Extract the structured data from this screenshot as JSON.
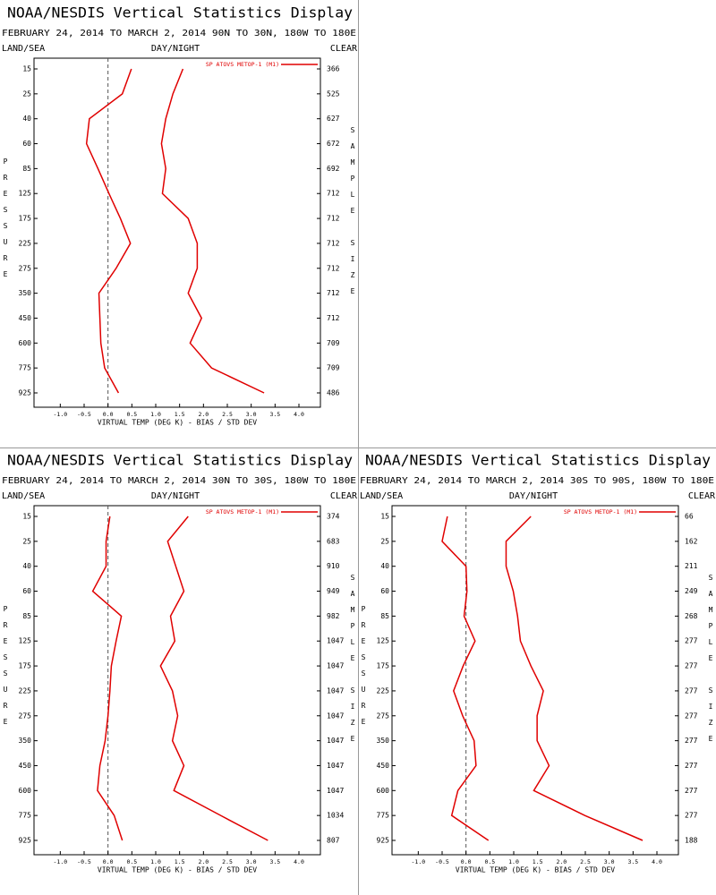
{
  "chart_data": [
    {
      "type": "line",
      "title": "NOAA/NESDIS Vertical Statistics Display",
      "subtitle": "FEBRUARY 24, 2014 TO MARCH 2, 2014 90N TO 30N, 180W TO 180E",
      "label_left": "LAND/SEA",
      "label_center": "DAY/NIGHT",
      "label_right": "CLEAR",
      "ylabel": "PRESSURE",
      "y2label": "SAMPLE SIZE",
      "xlabel": "VIRTUAL TEMP (DEG K) - BIAS / STD DEV",
      "categories": [
        15,
        25,
        40,
        60,
        85,
        125,
        175,
        225,
        275,
        350,
        450,
        600,
        775,
        925
      ],
      "series": [
        {
          "name": "SP ATOVS METOP-1 (M1)",
          "color": "#e00000",
          "bias": [
            0.49,
            0.3,
            -0.39,
            -0.45,
            -0.21,
            0.02,
            0.26,
            0.47,
            0.17,
            -0.19,
            -0.17,
            -0.15,
            -0.07,
            0.22
          ],
          "std_dev": [
            1.57,
            1.36,
            1.21,
            1.12,
            1.21,
            1.14,
            1.68,
            1.87,
            1.87,
            1.68,
            1.96,
            1.72,
            2.17,
            3.27
          ]
        }
      ],
      "sample_size": [
        366,
        525,
        627,
        672,
        692,
        712,
        712,
        712,
        712,
        712,
        712,
        709,
        709,
        486
      ],
      "xlim": [
        -1.55,
        4.45
      ],
      "xticks": [
        {
          "value": -1,
          "label": "-1.0"
        },
        -0.5,
        {
          "value": 0,
          "label": "0.0"
        },
        0.5,
        {
          "value": 1,
          "label": "1.0"
        },
        1.5,
        {
          "value": 2,
          "label": "2.0"
        },
        2.5,
        {
          "value": 3,
          "label": "3.0"
        },
        3.5,
        {
          "value": 4,
          "label": "4.0"
        }
      ]
    },
    {
      "type": "line",
      "title": "NOAA/NESDIS Vertical Statistics Display",
      "subtitle": "FEBRUARY 24, 2014 TO MARCH 2, 2014 30N TO 30S, 180W TO 180E",
      "label_left": "LAND/SEA",
      "label_center": "DAY/NIGHT",
      "label_right": "CLEAR",
      "ylabel": "PRESSURE",
      "y2label": "SAMPLE SIZE",
      "xlabel": "VIRTUAL TEMP (DEG K) - BIAS / STD DEV",
      "categories": [
        15,
        25,
        40,
        60,
        85,
        125,
        175,
        225,
        275,
        350,
        450,
        600,
        775,
        925
      ],
      "series": [
        {
          "name": "SP ATOVS METOP-1 (M1)",
          "color": "#e00000",
          "bias": [
            0.04,
            -0.04,
            -0.04,
            -0.32,
            0.28,
            0.17,
            0.07,
            0.04,
            0,
            -0.06,
            -0.17,
            -0.22,
            0.13,
            0.3
          ],
          "std_dev": [
            1.68,
            1.25,
            1.42,
            1.59,
            1.31,
            1.4,
            1.1,
            1.35,
            1.46,
            1.35,
            1.59,
            1.38,
            2.36,
            3.35
          ]
        }
      ],
      "sample_size": [
        374,
        683,
        910,
        949,
        982,
        1047,
        1047,
        1047,
        1047,
        1047,
        1047,
        1047,
        1034,
        807
      ],
      "xlim": [
        -1.55,
        4.45
      ],
      "xticks": [
        {
          "value": -1,
          "label": "-1.0"
        },
        -0.5,
        {
          "value": 0,
          "label": "0.0"
        },
        0.5,
        {
          "value": 1,
          "label": "1.0"
        },
        1.5,
        {
          "value": 2,
          "label": "2.0"
        },
        2.5,
        {
          "value": 3,
          "label": "3.0"
        },
        3.5,
        {
          "value": 4,
          "label": "4.0"
        }
      ]
    },
    {
      "type": "line",
      "title": "NOAA/NESDIS Vertical Statistics Display",
      "subtitle": "FEBRUARY 24, 2014 TO MARCH 2, 2014 30S TO 90S, 180W TO 180E",
      "label_left": "LAND/SEA",
      "label_center": "DAY/NIGHT",
      "label_right": "CLEAR",
      "ylabel": "PRESSURE",
      "y2label": "SAMPLE SIZE",
      "xlabel": "VIRTUAL TEMP (DEG K) - BIAS / STD DEV",
      "categories": [
        15,
        25,
        40,
        60,
        85,
        125,
        175,
        225,
        275,
        350,
        450,
        600,
        775,
        925
      ],
      "series": [
        {
          "name": "SP ATOVS METOP-1 (M1)",
          "color": "#e00000",
          "bias": [
            -0.39,
            -0.5,
            0,
            0.02,
            -0.04,
            0.19,
            -0.06,
            -0.26,
            -0.07,
            0.17,
            0.21,
            -0.17,
            -0.3,
            0.47
          ],
          "std_dev": [
            1.36,
            0.84,
            0.84,
            0.99,
            1.08,
            1.14,
            1.36,
            1.62,
            1.49,
            1.49,
            1.74,
            1.42,
            2.49,
            3.7
          ]
        }
      ],
      "sample_size": [
        66,
        162,
        211,
        249,
        268,
        277,
        277,
        277,
        277,
        277,
        277,
        277,
        277,
        188
      ],
      "xlim": [
        -1.55,
        4.45
      ],
      "xticks": [
        {
          "value": -1,
          "label": "-1.0"
        },
        -0.5,
        {
          "value": 0,
          "label": "0.0"
        },
        0.5,
        {
          "value": 1,
          "label": "1.0"
        },
        1.5,
        {
          "value": 2,
          "label": "2.0"
        },
        2.5,
        {
          "value": 3,
          "label": "3.0"
        },
        3.5,
        {
          "value": 4,
          "label": "4.0"
        }
      ]
    }
  ]
}
